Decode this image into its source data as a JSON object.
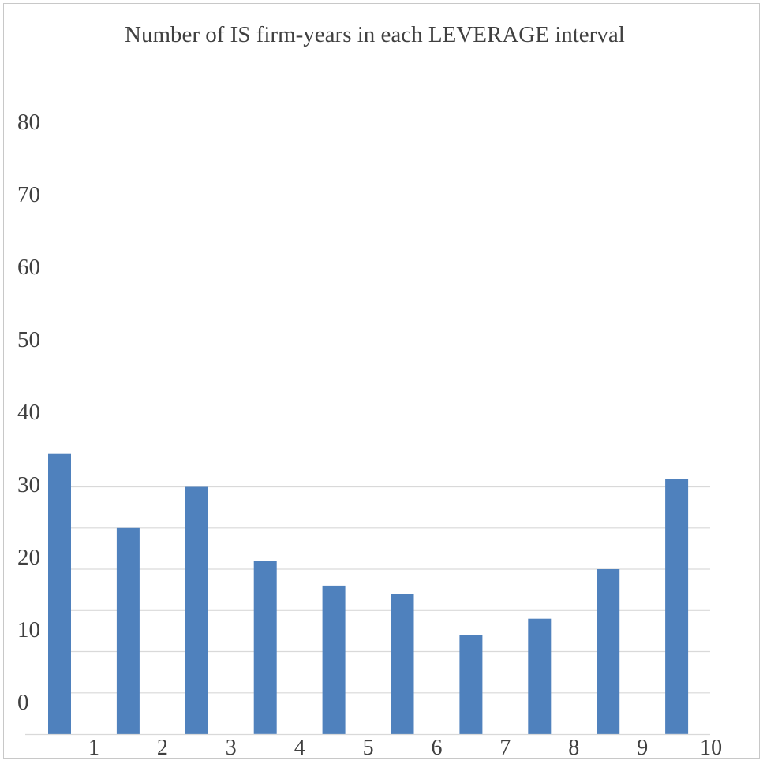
{
  "chart_data": {
    "type": "bar",
    "title": "Number of IS firm-years in each LEVERAGE interval",
    "xlabel": "",
    "ylabel": "",
    "categories": [
      "1",
      "2",
      "3",
      "4",
      "5",
      "6",
      "7",
      "8",
      "9",
      "10"
    ],
    "values": [
      34,
      25,
      30,
      21,
      18,
      17,
      12,
      14,
      20,
      31
    ],
    "y_tick_labels": [
      "80",
      "70",
      "60",
      "50",
      "40",
      "30",
      "20",
      "10",
      "0"
    ],
    "grid": true,
    "legend": "none",
    "colors": {
      "bar": "#4f81bd",
      "grid": "#d9d9d9",
      "text": "#404040",
      "border": "#c8c8c8"
    }
  }
}
